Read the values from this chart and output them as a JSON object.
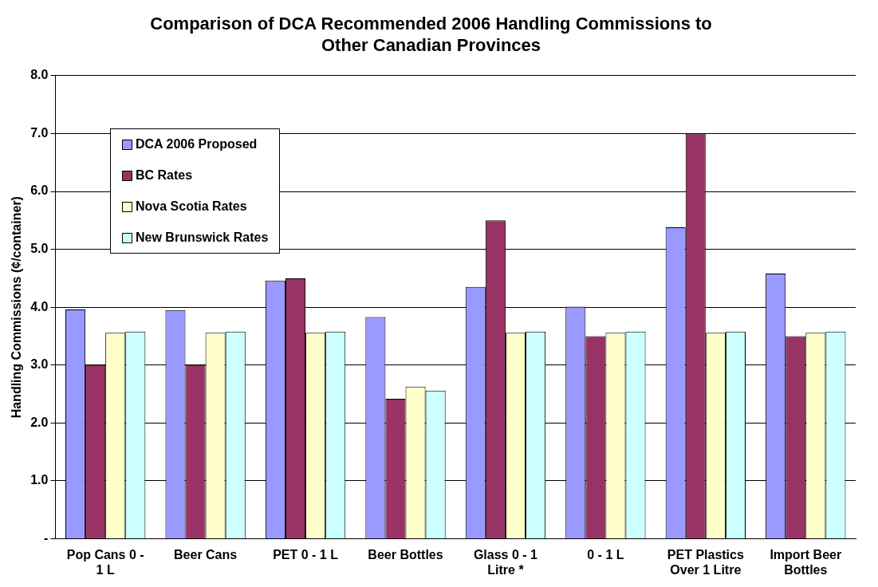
{
  "chart_data": {
    "type": "bar",
    "title": "Comparison of DCA Recommended 2006 Handling Commissions to Other Canadian Provinces",
    "ylabel": "Handling Commissions (¢/container)",
    "categories": [
      "Pop Cans 0 - 1 L",
      "Beer Cans",
      "PET 0 - 1 L",
      "Beer Bottles",
      "Glass 0 - 1 Litre *",
      "0 - 1 L",
      "PET Plastics Over 1 Litre",
      "Import Beer Bottles"
    ],
    "series": [
      {
        "name": "DCA 2006 Proposed",
        "color": "#9999ff",
        "values": [
          3.96,
          3.95,
          4.46,
          3.83,
          4.35,
          4.01,
          5.38,
          4.58
        ]
      },
      {
        "name": "BC Rates",
        "color": "#993366",
        "values": [
          3.0,
          3.0,
          4.5,
          2.42,
          5.5,
          3.5,
          7.0,
          3.5
        ]
      },
      {
        "name": "Nova Scotia Rates",
        "color": "#ffffcc",
        "values": [
          3.56,
          3.56,
          3.56,
          2.63,
          3.56,
          3.56,
          3.56,
          3.56
        ]
      },
      {
        "name": "New Brunswick Rates",
        "color": "#ccffff",
        "values": [
          3.58,
          3.58,
          3.58,
          2.56,
          3.58,
          3.58,
          3.58,
          3.58
        ]
      }
    ],
    "ylim": [
      0,
      8
    ],
    "yticks": [
      {
        "value": 0,
        "label": "-"
      },
      {
        "value": 1,
        "label": "1.0"
      },
      {
        "value": 2,
        "label": "2.0"
      },
      {
        "value": 3,
        "label": "3.0"
      },
      {
        "value": 4,
        "label": "4.0"
      },
      {
        "value": 5,
        "label": "5.0"
      },
      {
        "value": 6,
        "label": "6.0"
      },
      {
        "value": 7,
        "label": "7.0"
      },
      {
        "value": 8,
        "label": "8.0"
      }
    ],
    "grid": "y",
    "legend": "top left"
  }
}
